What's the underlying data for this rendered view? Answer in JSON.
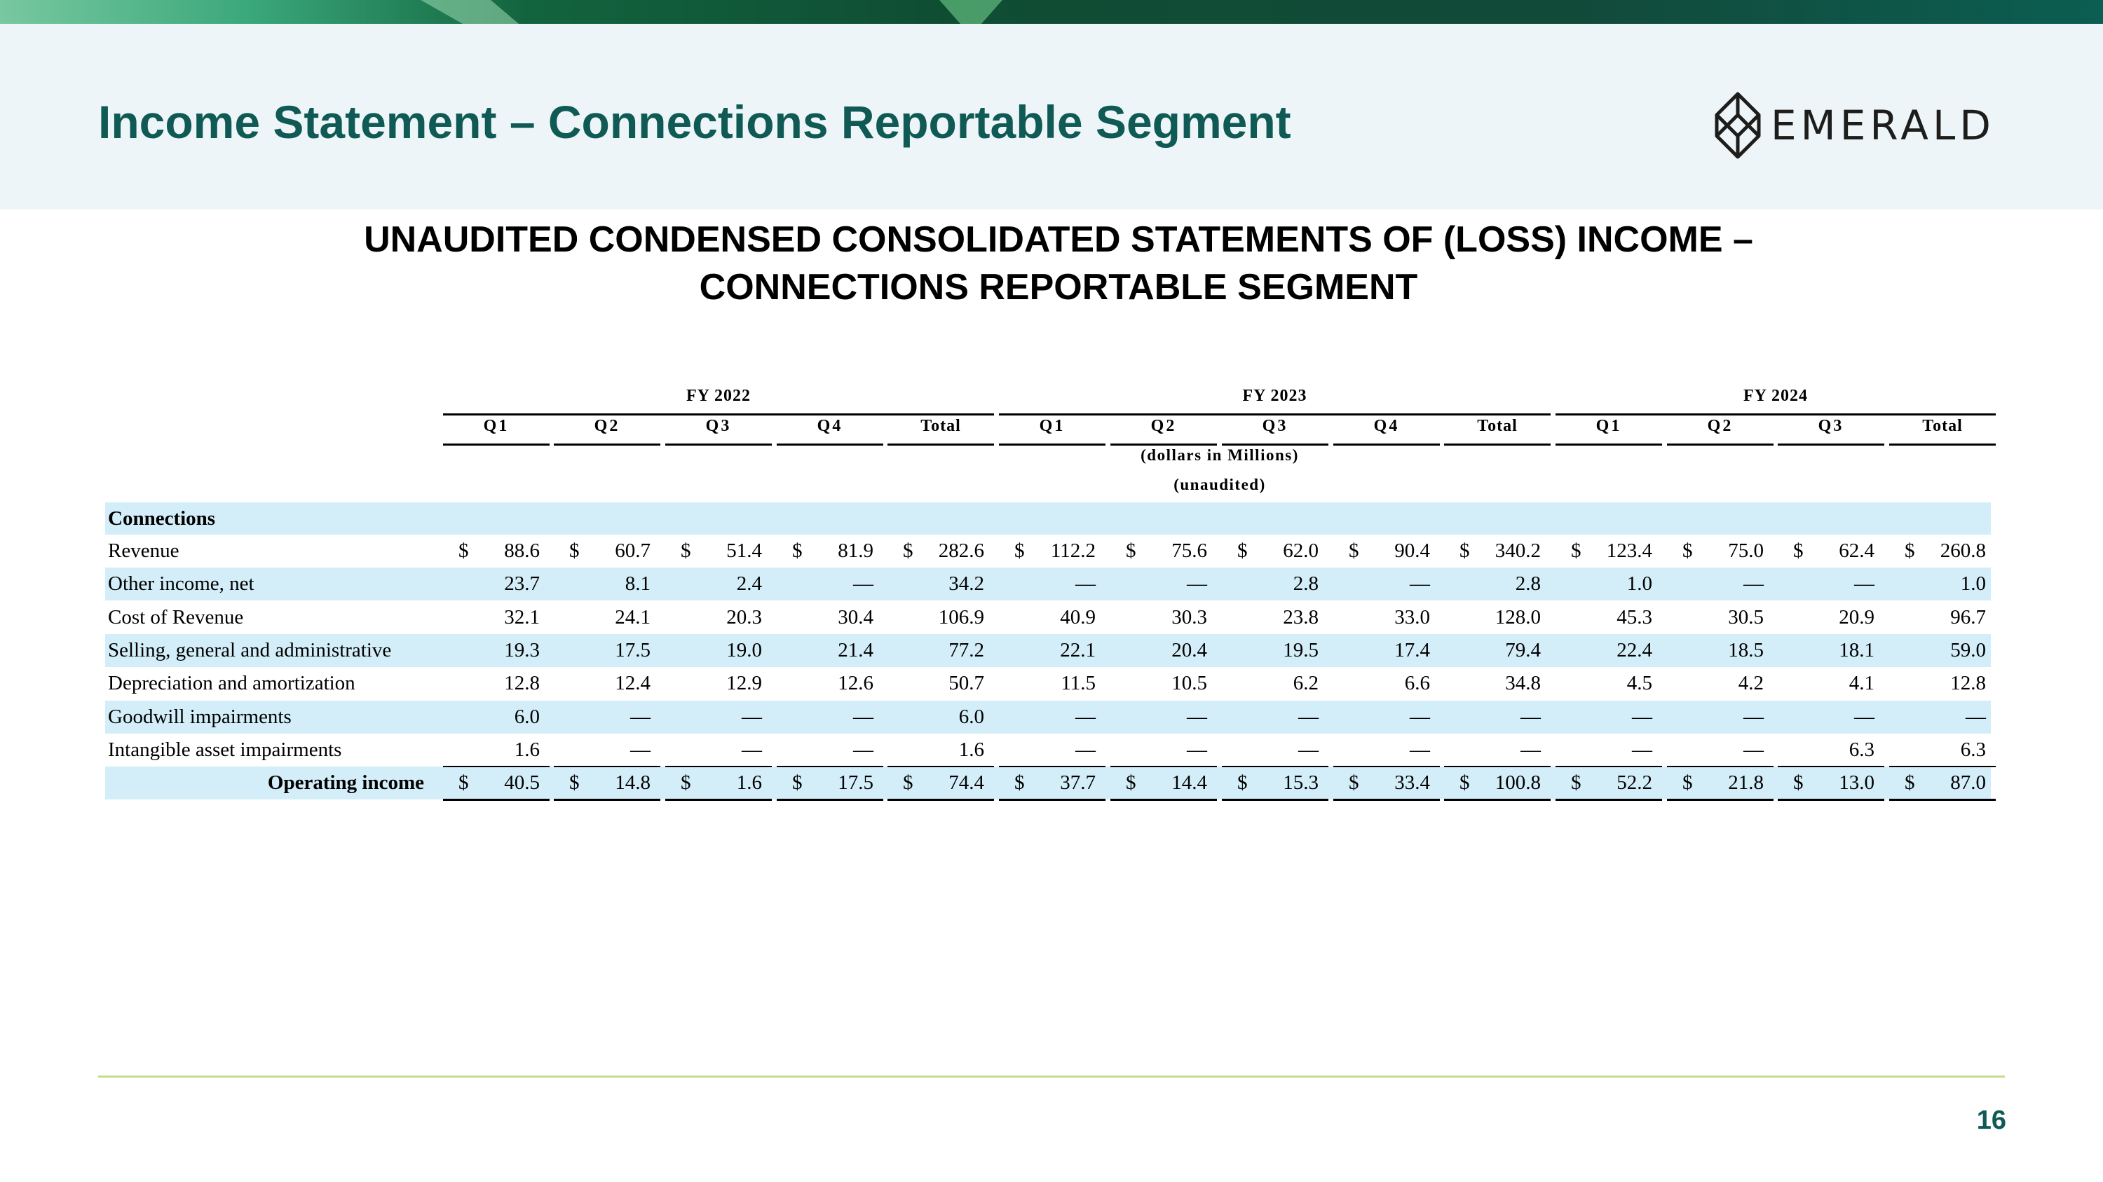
{
  "slide": {
    "title": "Income Statement – Connections Reportable Segment",
    "page_number": "16",
    "logo_text": "EMERALD"
  },
  "heading": {
    "line1": "UNAUDITED CONDENSED CONSOLIDATED STATEMENTS OF (LOSS) INCOME –",
    "line2": "CONNECTIONS REPORTABLE SEGMENT"
  },
  "colors": {
    "title": "#0f5a55",
    "band": "#d3eef9",
    "header_bg": "#eef5f8",
    "footer_line": "#c5dc8f"
  },
  "table": {
    "fiscal_years": [
      "FY 2022",
      "FY 2023",
      "FY 2024"
    ],
    "columns": [
      "Q1",
      "Q2",
      "Q3",
      "Q4",
      "Total",
      "Q1",
      "Q2",
      "Q3",
      "Q4",
      "Total",
      "Q1",
      "Q2",
      "Q3",
      "Total"
    ],
    "units_note": "(dollars in Millions)",
    "unaudited_note": "(unaudited)",
    "section_label": "Connections",
    "currency_symbol": "$",
    "rows": [
      {
        "label": "Revenue",
        "values": [
          "88.6",
          "60.7",
          "51.4",
          "81.9",
          "282.6",
          "112.2",
          "75.6",
          "62.0",
          "90.4",
          "340.2",
          "123.4",
          "75.0",
          "62.4",
          "260.8"
        ]
      },
      {
        "label": "Other income, net",
        "values": [
          "23.7",
          "8.1",
          "2.4",
          "—",
          "34.2",
          "—",
          "—",
          "2.8",
          "—",
          "2.8",
          "1.0",
          "—",
          "—",
          "1.0"
        ]
      },
      {
        "label": "Cost of Revenue",
        "values": [
          "32.1",
          "24.1",
          "20.3",
          "30.4",
          "106.9",
          "40.9",
          "30.3",
          "23.8",
          "33.0",
          "128.0",
          "45.3",
          "30.5",
          "20.9",
          "96.7"
        ]
      },
      {
        "label": "Selling, general and administrative",
        "values": [
          "19.3",
          "17.5",
          "19.0",
          "21.4",
          "77.2",
          "22.1",
          "20.4",
          "19.5",
          "17.4",
          "79.4",
          "22.4",
          "18.5",
          "18.1",
          "59.0"
        ]
      },
      {
        "label": "Depreciation and amortization",
        "values": [
          "12.8",
          "12.4",
          "12.9",
          "12.6",
          "50.7",
          "11.5",
          "10.5",
          "6.2",
          "6.6",
          "34.8",
          "4.5",
          "4.2",
          "4.1",
          "12.8"
        ]
      },
      {
        "label": "Goodwill impairments",
        "values": [
          "6.0",
          "—",
          "—",
          "—",
          "6.0",
          "—",
          "—",
          "—",
          "—",
          "—",
          "—",
          "—",
          "—",
          "—"
        ]
      },
      {
        "label": "Intangible asset impairments",
        "values": [
          "1.6",
          "—",
          "—",
          "—",
          "1.6",
          "—",
          "—",
          "—",
          "—",
          "—",
          "—",
          "—",
          "6.3",
          "6.3"
        ]
      },
      {
        "label": "Operating income",
        "values": [
          "40.5",
          "14.8",
          "1.6",
          "17.5",
          "74.4",
          "37.7",
          "14.4",
          "15.3",
          "33.4",
          "100.8",
          "52.2",
          "21.8",
          "13.0",
          "87.0"
        ]
      }
    ]
  }
}
